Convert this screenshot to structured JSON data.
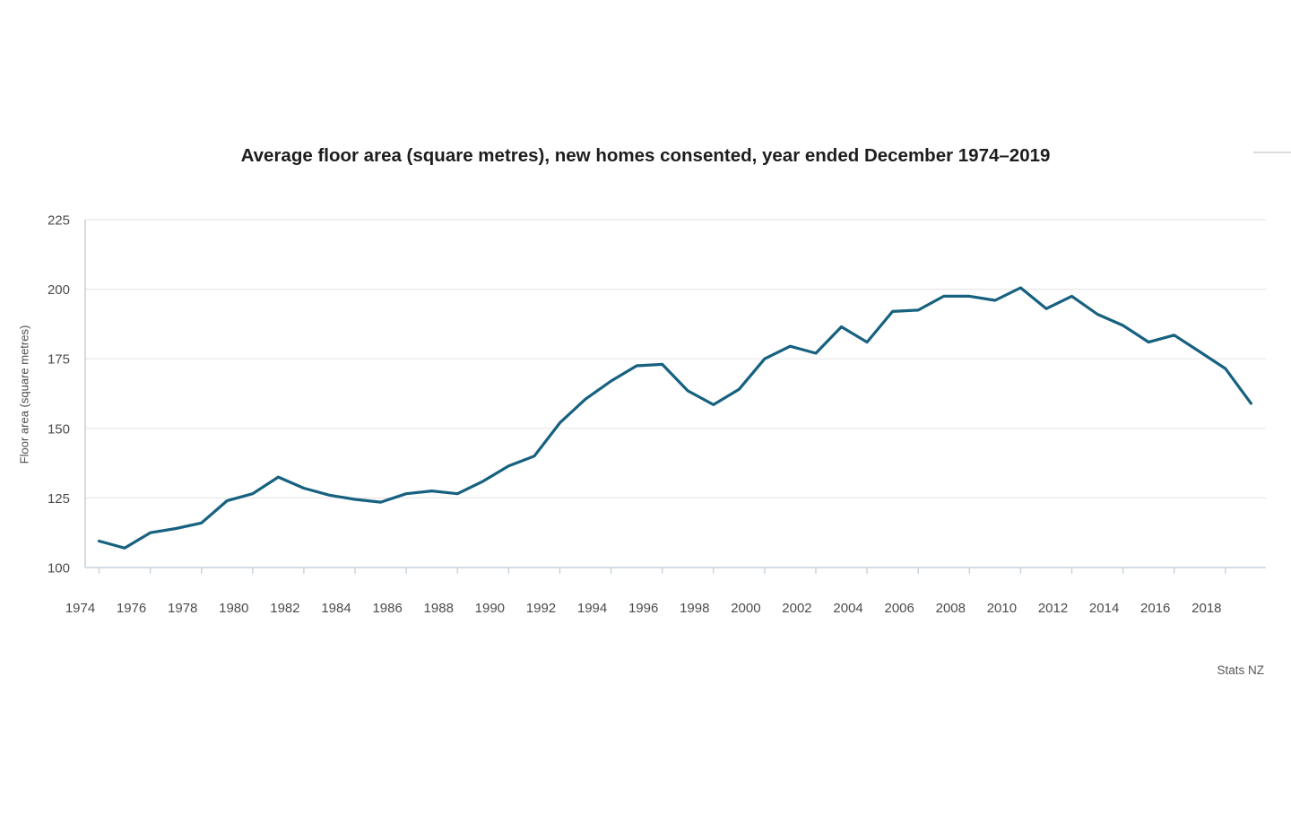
{
  "title": "Average floor area (square metres), new homes consented, year ended December 1974–2019",
  "source": "Stats NZ",
  "colors": {
    "line": "#16617f",
    "grid": "#e8e8e8",
    "axis": "#c9d2da",
    "tick_label": "#4c4c4c",
    "title_text": "#1d1d1d",
    "source_text": "#57585a"
  },
  "chart_data": {
    "type": "line",
    "title": "Average floor area (square metres), new homes consented, year ended December 1974–2019",
    "xlabel": "",
    "ylabel": "Floor area (square metres)",
    "x": [
      1974,
      1975,
      1976,
      1977,
      1978,
      1979,
      1980,
      1981,
      1982,
      1983,
      1984,
      1985,
      1986,
      1987,
      1988,
      1989,
      1990,
      1991,
      1992,
      1993,
      1994,
      1995,
      1996,
      1997,
      1998,
      1999,
      2000,
      2001,
      2002,
      2003,
      2004,
      2005,
      2006,
      2007,
      2008,
      2009,
      2010,
      2011,
      2012,
      2013,
      2014,
      2015,
      2016,
      2017,
      2018,
      2019
    ],
    "series": [
      {
        "name": "Average floor area (square metres)",
        "values": [
          109.5,
          107,
          112.5,
          114,
          116,
          124,
          126.5,
          132.5,
          128.5,
          126,
          124.5,
          123.5,
          126.5,
          127.5,
          126.5,
          131,
          136.5,
          140,
          152,
          160.5,
          167,
          172.5,
          173,
          163.5,
          158.5,
          164,
          175,
          179.5,
          177,
          186.5,
          181,
          192,
          192.5,
          197.5,
          197.5,
          196,
          200.5,
          193,
          197.5,
          191,
          187,
          181,
          183.5,
          177.5,
          171.5,
          159
        ]
      }
    ],
    "ylim": [
      100,
      225
    ],
    "yticks": [
      100,
      125,
      150,
      175,
      200,
      225
    ],
    "xticks": [
      1974,
      1976,
      1978,
      1980,
      1982,
      1984,
      1986,
      1988,
      1990,
      1992,
      1994,
      1996,
      1998,
      2000,
      2002,
      2004,
      2006,
      2008,
      2010,
      2012,
      2014,
      2016,
      2018
    ],
    "grid": "horizontal",
    "legend_position": "none"
  }
}
